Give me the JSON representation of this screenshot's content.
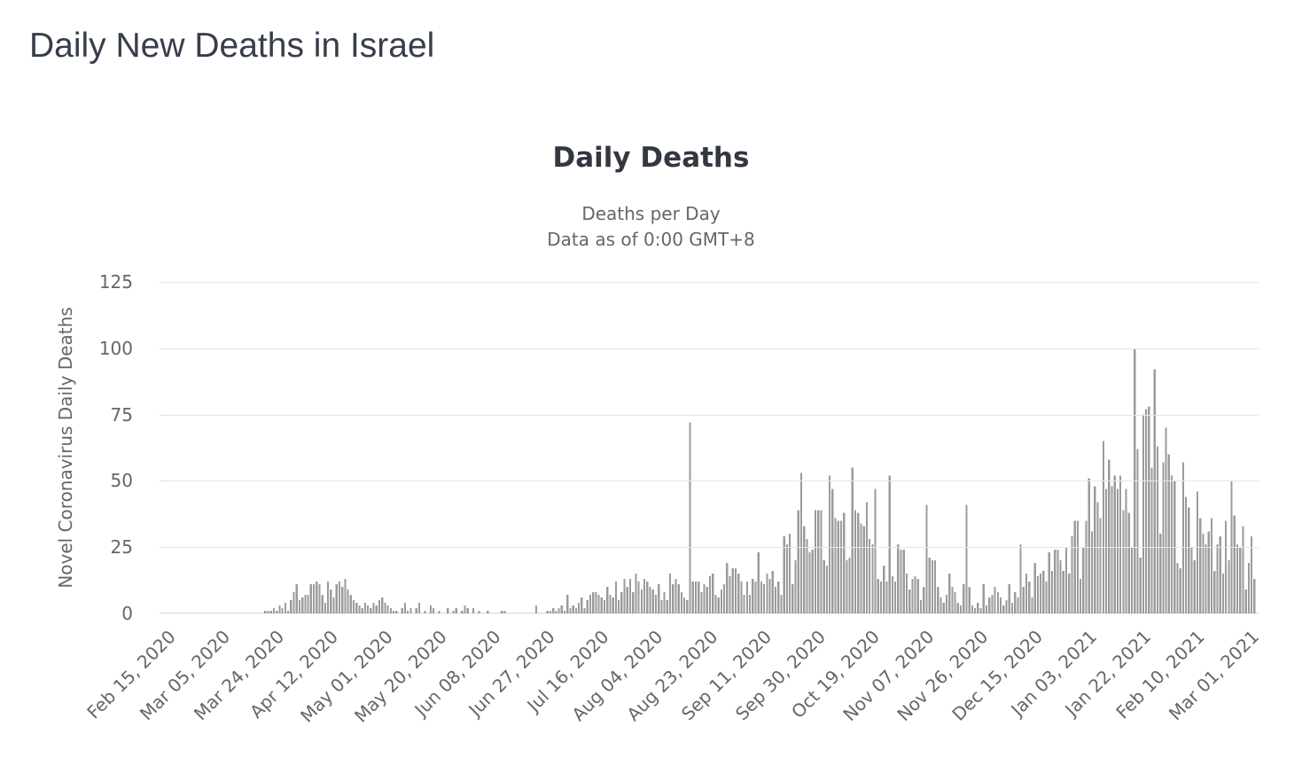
{
  "page": {
    "title": "Daily New Deaths in Israel"
  },
  "chart": {
    "title": "Daily Deaths",
    "subtitle_line1": "Deaths per Day",
    "subtitle_line2": "Data as of 0:00 GMT+8",
    "y_axis_title": "Novel Coronavirus Daily Deaths"
  },
  "colors": {
    "background": "#ffffff",
    "page_title": "#373e4a",
    "title": "#333840",
    "subtitle": "#666666",
    "axis_label": "#666666",
    "grid": "#e6e6e6",
    "axis_line": "#ccd6eb",
    "bar": "#9b9b9b"
  },
  "chart_data": {
    "type": "bar",
    "title": "Daily Deaths",
    "subtitle": [
      "Deaths per Day",
      "Data as of 0:00 GMT+8"
    ],
    "xlabel": "",
    "ylabel": "Novel Coronavirus Daily Deaths",
    "ylim": [
      0,
      125
    ],
    "y_ticks": [
      0,
      25,
      50,
      75,
      100,
      125
    ],
    "grid": "horizontal",
    "legend": "none",
    "values_start_date": "Feb 15, 2020",
    "values_interval_days": 1,
    "x_tick_interval_days": 19,
    "x_tick_labels": [
      "Feb 15, 2020",
      "Mar 05, 2020",
      "Mar 24, 2020",
      "Apr 12, 2020",
      "May 01, 2020",
      "May 20, 2020",
      "Jun 08, 2020",
      "Jun 27, 2020",
      "Jul 16, 2020",
      "Aug 04, 2020",
      "Aug 23, 2020",
      "Sep 11, 2020",
      "Sep 30, 2020",
      "Oct 19, 2020",
      "Nov 07, 2020",
      "Nov 26, 2020",
      "Dec 15, 2020",
      "Jan 03, 2021",
      "Jan 22, 2021",
      "Feb 10, 2021",
      "Mar 01, 2021"
    ],
    "values": [
      0,
      0,
      0,
      0,
      0,
      0,
      0,
      0,
      0,
      0,
      0,
      0,
      0,
      0,
      0,
      0,
      0,
      0,
      0,
      0,
      0,
      0,
      0,
      0,
      0,
      0,
      0,
      0,
      0,
      0,
      0,
      0,
      0,
      0,
      1,
      1,
      1,
      2,
      1,
      3,
      2,
      4,
      1,
      5,
      8,
      11,
      5,
      6,
      7,
      7,
      11,
      11,
      12,
      11,
      7,
      4,
      12,
      9,
      6,
      11,
      12,
      10,
      13,
      9,
      7,
      5,
      4,
      3,
      2,
      4,
      3,
      2,
      4,
      3,
      5,
      6,
      4,
      3,
      2,
      1,
      1,
      0,
      2,
      4,
      1,
      2,
      0,
      2,
      4,
      0,
      1,
      0,
      3,
      2,
      0,
      1,
      0,
      0,
      2,
      0,
      1,
      2,
      0,
      1,
      3,
      2,
      0,
      2,
      0,
      1,
      0,
      0,
      1,
      0,
      0,
      0,
      0,
      1,
      1,
      0,
      0,
      0,
      0,
      0,
      0,
      0,
      0,
      0,
      0,
      3,
      0,
      0,
      0,
      1,
      1,
      2,
      1,
      2,
      3,
      1,
      7,
      2,
      3,
      2,
      4,
      6,
      2,
      5,
      7,
      8,
      8,
      7,
      6,
      5,
      10,
      7,
      6,
      12,
      5,
      8,
      13,
      10,
      13,
      8,
      15,
      12,
      9,
      13,
      12,
      10,
      9,
      7,
      11,
      5,
      8,
      5,
      15,
      11,
      13,
      11,
      8,
      6,
      5,
      72,
      12,
      12,
      12,
      8,
      11,
      10,
      14,
      15,
      7,
      6,
      9,
      11,
      19,
      14,
      17,
      17,
      15,
      12,
      7,
      12,
      7,
      13,
      12,
      23,
      12,
      11,
      15,
      13,
      16,
      10,
      12,
      7,
      29,
      26,
      30,
      11,
      20,
      39,
      53,
      33,
      28,
      23,
      24,
      39,
      39,
      39,
      20,
      18,
      52,
      47,
      36,
      35,
      35,
      38,
      20,
      21,
      55,
      39,
      38,
      34,
      33,
      42,
      28,
      26,
      47,
      13,
      12,
      18,
      12,
      52,
      14,
      12,
      26,
      24,
      24,
      15,
      9,
      13,
      14,
      13,
      5,
      10,
      41,
      21,
      20,
      20,
      10,
      6,
      4,
      7,
      15,
      10,
      8,
      4,
      3,
      11,
      41,
      10,
      3,
      2,
      4,
      2,
      11,
      3,
      6,
      7,
      10,
      8,
      6,
      3,
      5,
      11,
      4,
      8,
      6,
      26,
      10,
      15,
      12,
      6,
      19,
      14,
      15,
      16,
      12,
      23,
      16,
      24,
      24,
      20,
      16,
      25,
      15,
      29,
      35,
      35,
      13,
      25,
      35,
      51,
      31,
      48,
      42,
      36,
      65,
      47,
      58,
      48,
      52,
      47,
      52,
      39,
      47,
      38,
      25,
      100,
      62,
      21,
      75,
      77,
      78,
      55,
      92,
      63,
      30,
      57,
      70,
      60,
      52,
      50,
      19,
      17,
      57,
      44,
      40,
      25,
      20,
      46,
      36,
      30,
      26,
      31,
      36,
      16,
      26,
      29,
      15,
      35,
      20,
      50,
      37,
      26,
      25,
      33,
      9,
      19,
      29,
      13
    ]
  }
}
